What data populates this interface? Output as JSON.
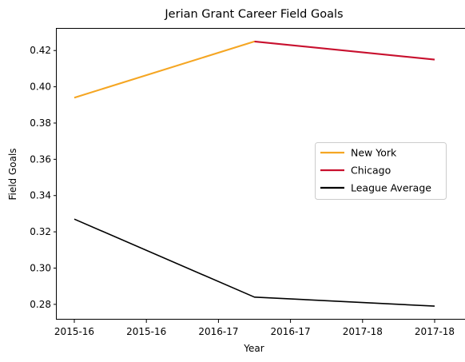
{
  "chart_data": {
    "type": "line",
    "title": "Jerian Grant Career Field Goals",
    "xlabel": "Year",
    "ylabel": "Field Goals",
    "x_tick_labels": [
      "2015-16",
      "2015-16",
      "2016-17",
      "2016-17",
      "2017-18",
      "2017-18"
    ],
    "ylim": [
      0.272,
      0.432
    ],
    "y_ticks": [
      0.28,
      0.3,
      0.32,
      0.34,
      0.36,
      0.38,
      0.4,
      0.42
    ],
    "y_tick_labels": [
      "0.28",
      "0.30",
      "0.32",
      "0.34",
      "0.36",
      "0.38",
      "0.40",
      "0.42"
    ],
    "grid": false,
    "legend_position": "center-right",
    "series": [
      {
        "name": "New York",
        "color": "#f5a623",
        "x": [
          "2015-16",
          "2016-17"
        ],
        "values": [
          0.394,
          0.425
        ]
      },
      {
        "name": "Chicago",
        "color": "#c8102e",
        "x": [
          "2016-17",
          "2017-18"
        ],
        "values": [
          0.425,
          0.415
        ]
      },
      {
        "name": "League Average",
        "color": "#000000",
        "x": [
          "2015-16",
          "2016-17",
          "2017-18"
        ],
        "values": [
          0.327,
          0.284,
          0.279
        ]
      }
    ]
  }
}
